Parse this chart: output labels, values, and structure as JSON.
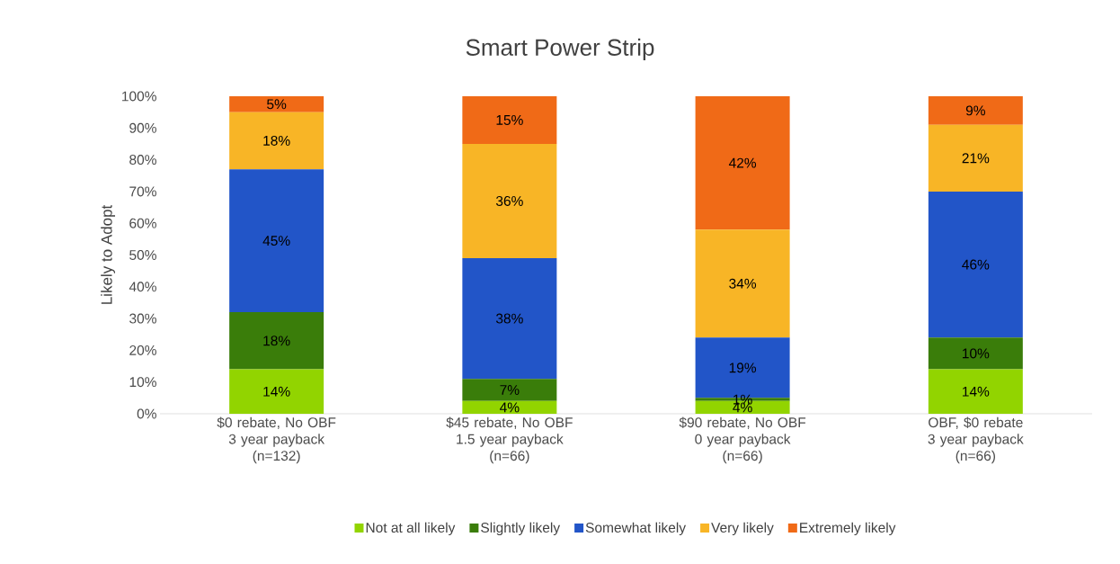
{
  "chart_data": {
    "type": "bar",
    "stacked": true,
    "title": "Smart Power Strip",
    "ylabel": "Likely to Adopt",
    "categories": [
      "$0 rebate, No OBF\n3 year payback\n(n=132)",
      "$45 rebate, No OBF\n1.5 year payback\n(n=66)",
      "$90 rebate, No OBF\n0 year payback\n(n=66)",
      "OBF, $0 rebate\n3 year payback\n(n=66)"
    ],
    "series": [
      {
        "name": "Not at all likely",
        "color": "#92d400",
        "values": [
          14,
          4,
          4,
          14
        ],
        "value_labels": [
          "14%",
          "4%",
          "4%",
          "14%"
        ]
      },
      {
        "name": "Slightly likely",
        "color": "#3a7d0a",
        "values": [
          18,
          7,
          1,
          10
        ],
        "value_labels": [
          "18%",
          "7%",
          "1%",
          "10%"
        ]
      },
      {
        "name": "Somewhat likely",
        "color": "#2255c8",
        "values": [
          45,
          38,
          19,
          46
        ],
        "value_labels": [
          "45%",
          "38%",
          "19%",
          "46%"
        ]
      },
      {
        "name": "Very likely",
        "color": "#f8b526",
        "values": [
          18,
          36,
          34,
          21
        ],
        "value_labels": [
          "18%",
          "36%",
          "34%",
          "21%"
        ]
      },
      {
        "name": "Extremely likely",
        "color": "#f06a17",
        "values": [
          5,
          15,
          42,
          9
        ],
        "value_labels": [
          "5%",
          "15%",
          "42%",
          "9%"
        ]
      }
    ],
    "ylim": [
      0,
      100
    ],
    "yticks": [
      {
        "value": 0,
        "label": "0%"
      },
      {
        "value": 10,
        "label": "10%"
      },
      {
        "value": 20,
        "label": "20%"
      },
      {
        "value": 30,
        "label": "30%"
      },
      {
        "value": 40,
        "label": "40%"
      },
      {
        "value": 50,
        "label": "50%"
      },
      {
        "value": 60,
        "label": "60%"
      },
      {
        "value": 70,
        "label": "70%"
      },
      {
        "value": 80,
        "label": "80%"
      },
      {
        "value": 90,
        "label": "90%"
      },
      {
        "value": 100,
        "label": "100%"
      }
    ],
    "legend": "bottom",
    "grid": false
  }
}
